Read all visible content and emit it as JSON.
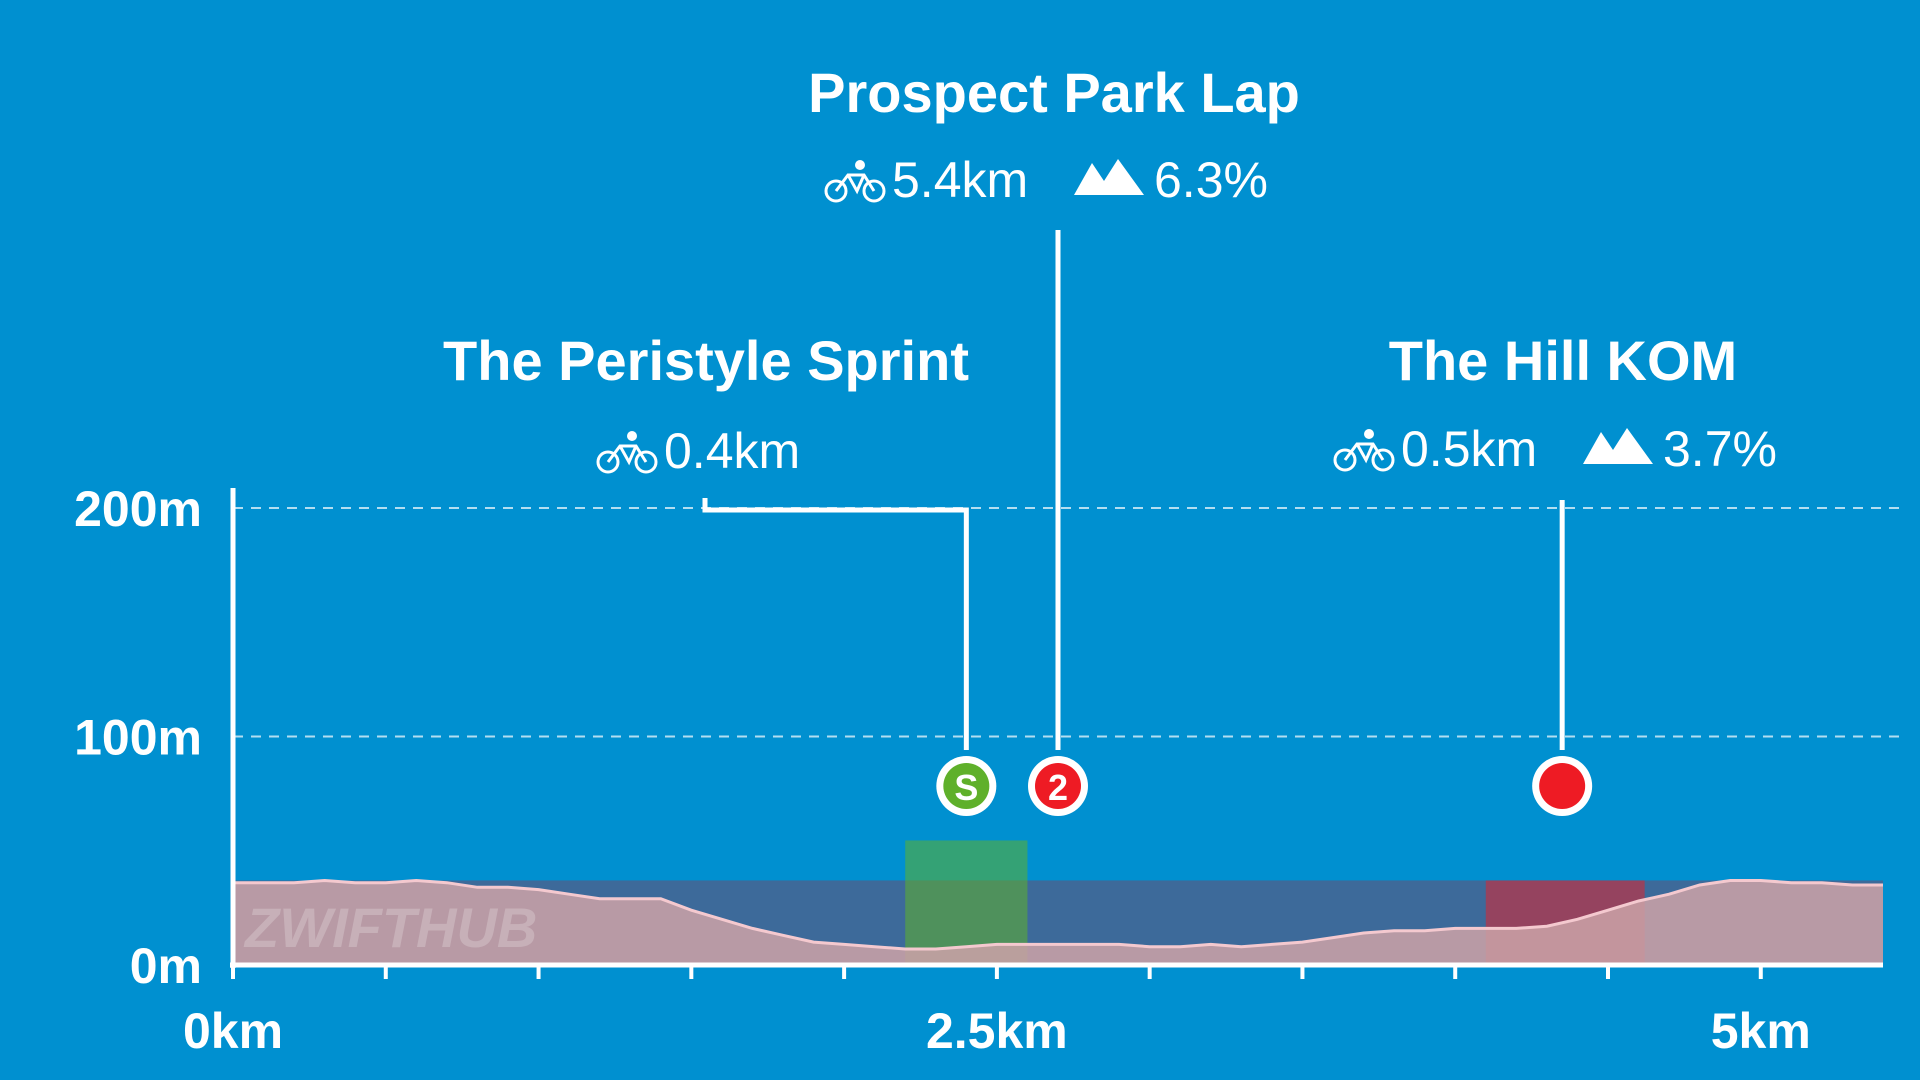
{
  "colors": {
    "background": "#0090d0",
    "profile_fill": "#c9a0a6",
    "profile_line": "#f4c9cf",
    "profile_band": "#3d6a9a",
    "sprint": "#5fb02a",
    "kom": "#ee1b24",
    "white": "#ffffff"
  },
  "watermark": "ZWIFTHUB",
  "segments": [
    {
      "key": "sprint",
      "title": "The Peristyle Sprint",
      "distance": "0.4km",
      "marker_label": "S",
      "marker_km": 2.4,
      "start_km": 2.2,
      "end_km": 2.6,
      "color": "#5fb02a",
      "icons": [
        "bike-icon"
      ]
    },
    {
      "key": "lap",
      "title": "Prospect Park Lap",
      "distance": "5.4km",
      "gradient": "6.3%",
      "marker_label": "2",
      "marker_km": 2.7,
      "color": "#ee1b24",
      "icons": [
        "bike-icon",
        "mountain-icon"
      ]
    },
    {
      "key": "kom",
      "title": "The Hill KOM",
      "distance": "0.5km",
      "gradient": "3.7%",
      "marker_label": "",
      "marker_km": 4.35,
      "start_km": 4.1,
      "end_km": 4.62,
      "color": "#ee1b24",
      "icons": [
        "bike-icon",
        "mountain-icon"
      ]
    }
  ],
  "chart_data": {
    "type": "area",
    "title": "",
    "xlabel": "",
    "ylabel": "",
    "xlim": [
      0,
      5.4
    ],
    "ylim": [
      0,
      200
    ],
    "x_ticks": [
      {
        "value": 0,
        "label": "0km"
      },
      {
        "value": 2.5,
        "label": "2.5km"
      },
      {
        "value": 5,
        "label": "5km"
      }
    ],
    "y_ticks": [
      {
        "value": 0,
        "label": "0m"
      },
      {
        "value": 100,
        "label": "100m"
      },
      {
        "value": 200,
        "label": "200m"
      }
    ],
    "grid": "horizontal dashed",
    "series": [
      {
        "x": [
          0,
          0.1,
          0.2,
          0.3,
          0.4,
          0.5,
          0.6,
          0.7,
          0.8,
          0.9,
          1.0,
          1.1,
          1.2,
          1.3,
          1.4,
          1.5,
          1.6,
          1.7,
          1.8,
          1.9,
          2.0,
          2.1,
          2.2,
          2.3,
          2.4,
          2.5,
          2.6,
          2.7,
          2.8,
          2.9,
          3.0,
          3.1,
          3.2,
          3.3,
          3.4,
          3.5,
          3.6,
          3.7,
          3.8,
          3.9,
          4.0,
          4.1,
          4.2,
          4.3,
          4.4,
          4.5,
          4.6,
          4.7,
          4.8,
          4.9,
          5.0,
          5.1,
          5.2,
          5.3,
          5.4
        ],
        "y": [
          36,
          36,
          36,
          37,
          36,
          36,
          37,
          36,
          34,
          34,
          33,
          31,
          29,
          29,
          29,
          24,
          20,
          16,
          13,
          10,
          9,
          8,
          7,
          7,
          8,
          9,
          9,
          9,
          9,
          9,
          8,
          8,
          9,
          8,
          9,
          10,
          12,
          14,
          15,
          15,
          16,
          16,
          16,
          17,
          20,
          24,
          28,
          31,
          35,
          37,
          37,
          36,
          36,
          35,
          35
        ]
      }
    ]
  }
}
